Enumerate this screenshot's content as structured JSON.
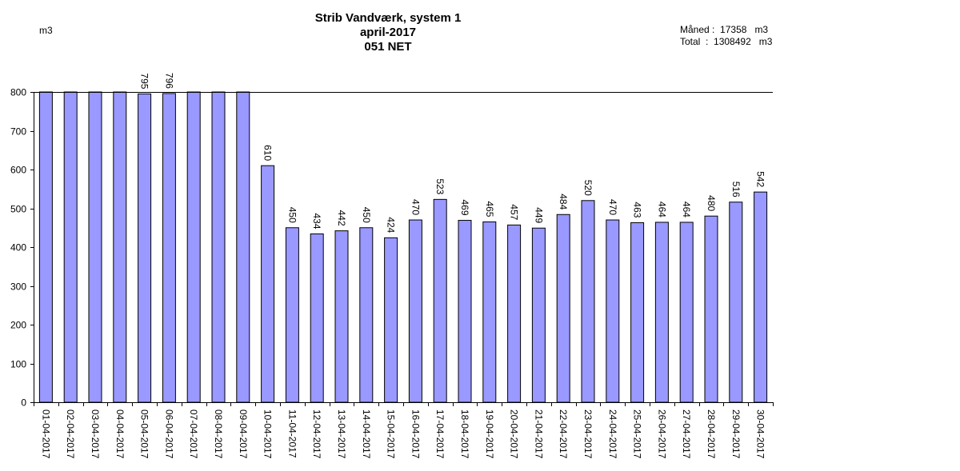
{
  "header": {
    "title_line1": "Strib Vandværk, system 1",
    "title_line2": "april-2017",
    "title_line3": "051 NET",
    "unit": "m3",
    "month_label": "Måned",
    "month_value": "17358",
    "month_unit": "m3",
    "total_label": "Total",
    "total_value": "1308492",
    "total_unit": "m3"
  },
  "chart_data": {
    "type": "bar",
    "title": "Strib Vandværk, system 1",
    "subtitle": "april-2017 051 NET",
    "ylabel": "m3",
    "xlabel": "",
    "ylim": [
      0,
      800
    ],
    "yticks": [
      0,
      100,
      200,
      300,
      400,
      500,
      600,
      700,
      800
    ],
    "grid": false,
    "bar_color": "#9999ff",
    "categories": [
      "01-04-2017",
      "02-04-2017",
      "03-04-2017",
      "04-04-2017",
      "05-04-2017",
      "06-04-2017",
      "07-04-2017",
      "08-04-2017",
      "09-04-2017",
      "10-04-2017",
      "11-04-2017",
      "12-04-2017",
      "13-04-2017",
      "14-04-2017",
      "15-04-2017",
      "16-04-2017",
      "17-04-2017",
      "18-04-2017",
      "19-04-2017",
      "20-04-2017",
      "21-04-2017",
      "22-04-2017",
      "23-04-2017",
      "24-04-2017",
      "25-04-2017",
      "26-04-2017",
      "27-04-2017",
      "28-04-2017",
      "29-04-2017",
      "30-04-2017"
    ],
    "values": [
      800,
      800,
      800,
      800,
      795,
      796,
      800,
      800,
      800,
      610,
      450,
      434,
      442,
      450,
      424,
      470,
      523,
      469,
      465,
      457,
      449,
      484,
      520,
      470,
      463,
      464,
      464,
      480,
      516,
      542
    ],
    "value_labels": [
      "",
      "",
      "",
      "",
      "795",
      "796",
      "",
      "",
      "",
      "610",
      "450",
      "434",
      "442",
      "450",
      "424",
      "470",
      "523",
      "469",
      "465",
      "457",
      "449",
      "484",
      "520",
      "470",
      "463",
      "464",
      "464",
      "480",
      "516",
      "542"
    ]
  }
}
